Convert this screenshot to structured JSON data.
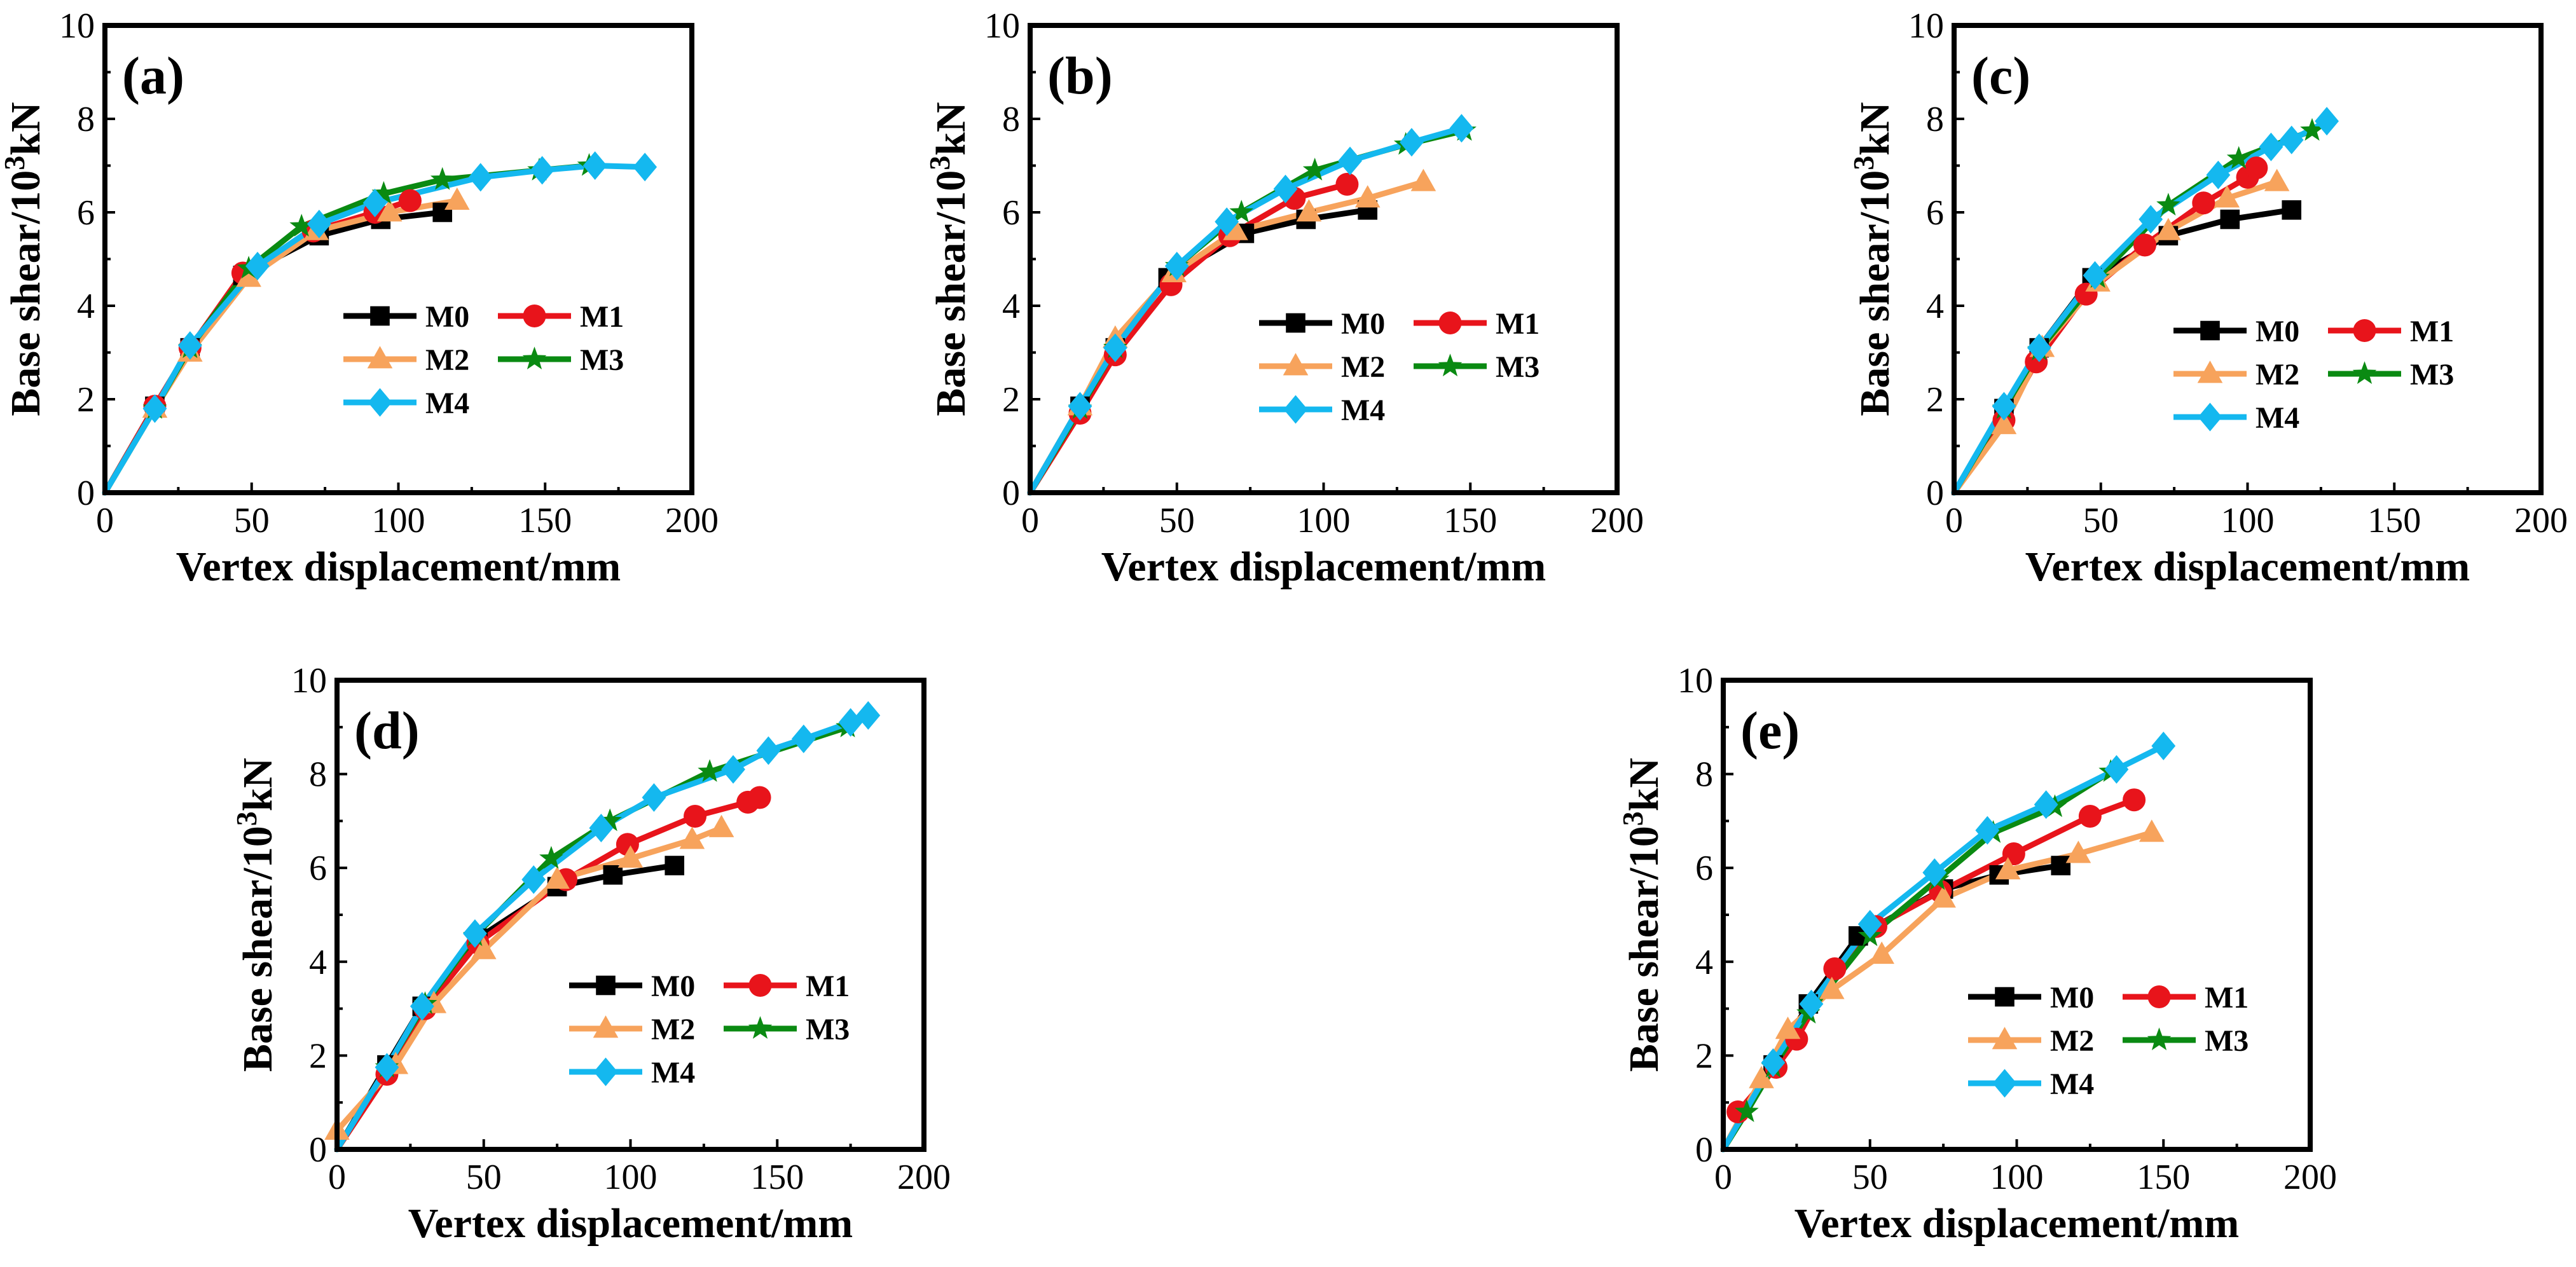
{
  "chart_data": [
    {
      "type": "line",
      "panel_label": "(a)",
      "xlabel": "Vertex displacement/mm",
      "ylabel_main": "Base shear/10",
      "ylabel_sup": "3",
      "ylabel_unit": "kN",
      "xlim": [
        0,
        200
      ],
      "ylim": [
        0,
        10
      ],
      "xticks": [
        "0",
        "50",
        "100",
        "150",
        "200"
      ],
      "yticks": [
        "0",
        "2",
        "4",
        "6",
        "8",
        "10"
      ],
      "series": [
        {
          "name": "M0",
          "color": "#000000",
          "marker": "square",
          "x": [
            0,
            17,
            29,
            47,
            73,
            94,
            115
          ],
          "y": [
            0,
            1.85,
            3.1,
            4.65,
            5.5,
            5.85,
            6.0
          ]
        },
        {
          "name": "M1",
          "color": "#e8141b",
          "marker": "circle",
          "x": [
            0,
            17,
            29,
            47,
            71,
            92,
            104
          ],
          "y": [
            0,
            1.85,
            3.1,
            4.7,
            5.6,
            6.0,
            6.25
          ]
        },
        {
          "name": "M2",
          "color": "#f7a35c",
          "marker": "triangle",
          "x": [
            0,
            17,
            29,
            49,
            72,
            97,
            120
          ],
          "y": [
            0,
            1.8,
            3.0,
            4.6,
            5.6,
            6.0,
            6.25
          ]
        },
        {
          "name": "M3",
          "color": "#0a8a12",
          "marker": "star",
          "x": [
            0,
            17,
            29,
            49,
            67,
            95,
            115,
            148,
            165
          ],
          "y": [
            0,
            1.8,
            3.1,
            4.8,
            5.7,
            6.4,
            6.7,
            6.9,
            7.0
          ]
        },
        {
          "name": "M4",
          "color": "#14b8ef",
          "marker": "diamond",
          "x": [
            0,
            17,
            29,
            52,
            73,
            92,
            128,
            149,
            167,
            184
          ],
          "y": [
            0,
            1.8,
            3.15,
            4.85,
            5.75,
            6.2,
            6.75,
            6.9,
            7.0,
            6.97
          ]
        }
      ],
      "legend_position": "lower-right"
    },
    {
      "type": "line",
      "panel_label": "(b)",
      "xlabel": "Vertex displacement/mm",
      "ylabel_main": "Base shear/10",
      "ylabel_sup": "3",
      "ylabel_unit": "kN",
      "xlim": [
        0,
        200
      ],
      "ylim": [
        0,
        10
      ],
      "xticks": [
        "0",
        "50",
        "100",
        "150",
        "200"
      ],
      "yticks": [
        "0",
        "2",
        "4",
        "6",
        "8",
        "10"
      ],
      "series": [
        {
          "name": "M0",
          "color": "#000000",
          "marker": "square",
          "x": [
            0,
            17,
            29,
            47,
            73,
            94,
            115
          ],
          "y": [
            0,
            1.85,
            3.1,
            4.6,
            5.55,
            5.85,
            6.05
          ]
        },
        {
          "name": "M1",
          "color": "#e8141b",
          "marker": "circle",
          "x": [
            0,
            17,
            29,
            48,
            68,
            90,
            108
          ],
          "y": [
            0,
            1.7,
            2.95,
            4.45,
            5.5,
            6.3,
            6.6
          ]
        },
        {
          "name": "M2",
          "color": "#f7a35c",
          "marker": "triangle",
          "x": [
            0,
            17,
            29,
            49,
            70,
            95,
            115,
            134
          ],
          "y": [
            0,
            1.85,
            3.3,
            4.7,
            5.6,
            6.0,
            6.3,
            6.65
          ]
        },
        {
          "name": "M3",
          "color": "#0a8a12",
          "marker": "star",
          "x": [
            0,
            17,
            29,
            50,
            72,
            97,
            128,
            148
          ],
          "y": [
            0,
            1.8,
            3.1,
            4.85,
            6.0,
            6.9,
            7.45,
            7.75
          ]
        },
        {
          "name": "M4",
          "color": "#14b8ef",
          "marker": "diamond",
          "x": [
            0,
            17,
            29,
            50,
            67,
            87,
            109,
            130,
            147
          ],
          "y": [
            0,
            1.85,
            3.1,
            4.85,
            5.8,
            6.5,
            7.1,
            7.5,
            7.8
          ]
        }
      ],
      "legend_position": "lower-right"
    },
    {
      "type": "line",
      "panel_label": "(c)",
      "xlabel": "Vertex displacement/mm",
      "ylabel_main": "Base shear/10",
      "ylabel_sup": "3",
      "ylabel_unit": "kN",
      "xlim": [
        0,
        200
      ],
      "ylim": [
        0,
        10
      ],
      "xticks": [
        "0",
        "50",
        "100",
        "150",
        "200"
      ],
      "yticks": [
        "0",
        "2",
        "4",
        "6",
        "8",
        "10"
      ],
      "series": [
        {
          "name": "M0",
          "color": "#000000",
          "marker": "square",
          "x": [
            0,
            17,
            29,
            47,
            73,
            94,
            115
          ],
          "y": [
            0,
            1.8,
            3.1,
            4.6,
            5.5,
            5.85,
            6.05
          ]
        },
        {
          "name": "M1",
          "color": "#e8141b",
          "marker": "circle",
          "x": [
            0,
            17,
            28,
            45,
            65,
            85,
            100,
            103
          ],
          "y": [
            0,
            1.55,
            2.8,
            4.25,
            5.3,
            6.2,
            6.75,
            6.95
          ]
        },
        {
          "name": "M2",
          "color": "#f7a35c",
          "marker": "triangle",
          "x": [
            0,
            17,
            30,
            49,
            73,
            93,
            110
          ],
          "y": [
            0,
            1.45,
            3.1,
            4.5,
            5.6,
            6.3,
            6.65
          ]
        },
        {
          "name": "M3",
          "color": "#0a8a12",
          "marker": "star",
          "x": [
            0,
            17,
            29,
            49,
            73,
            97,
            122
          ],
          "y": [
            0,
            1.8,
            3.05,
            4.6,
            6.15,
            7.15,
            7.75
          ]
        },
        {
          "name": "M4",
          "color": "#14b8ef",
          "marker": "diamond",
          "x": [
            0,
            17,
            29,
            48,
            67,
            90,
            108,
            115,
            127
          ],
          "y": [
            0,
            1.85,
            3.1,
            4.65,
            5.85,
            6.8,
            7.4,
            7.55,
            7.95
          ]
        }
      ],
      "legend_position": "lower-right"
    },
    {
      "type": "line",
      "panel_label": "(d)",
      "xlabel": "Vertex displacement/mm",
      "ylabel_main": "Base shear/10",
      "ylabel_sup": "3",
      "ylabel_unit": "kN",
      "xlim": [
        0,
        200
      ],
      "ylim": [
        0,
        10
      ],
      "xticks": [
        "0",
        "50",
        "100",
        "150",
        "200"
      ],
      "yticks": [
        "0",
        "2",
        "4",
        "6",
        "8",
        "10"
      ],
      "series": [
        {
          "name": "M0",
          "color": "#000000",
          "marker": "square",
          "x": [
            0,
            17,
            29,
            48,
            75,
            94,
            115
          ],
          "y": [
            0,
            1.8,
            3.05,
            4.5,
            5.6,
            5.85,
            6.05
          ]
        },
        {
          "name": "M1",
          "color": "#e8141b",
          "marker": "circle",
          "x": [
            0,
            17,
            30,
            48,
            78,
            99,
            122,
            140,
            144
          ],
          "y": [
            0,
            1.6,
            3.0,
            4.4,
            5.75,
            6.5,
            7.1,
            7.4,
            7.5
          ]
        },
        {
          "name": "M2",
          "color": "#f7a35c",
          "marker": "triangle",
          "x": [
            0,
            20,
            33,
            50,
            75,
            100,
            121,
            131
          ],
          "y": [
            0.4,
            1.8,
            3.1,
            4.25,
            5.75,
            6.2,
            6.6,
            6.85
          ]
        },
        {
          "name": "M3",
          "color": "#0a8a12",
          "marker": "star",
          "x": [
            0,
            17,
            30,
            47,
            73,
            93,
            127,
            174
          ],
          "y": [
            0,
            1.75,
            3.1,
            4.55,
            6.2,
            7.0,
            8.05,
            9.0
          ]
        },
        {
          "name": "M4",
          "color": "#14b8ef",
          "marker": "diamond",
          "x": [
            0,
            17,
            29,
            47,
            67,
            90,
            108,
            135,
            147,
            159,
            175,
            181
          ],
          "y": [
            0,
            1.75,
            3.05,
            4.6,
            5.75,
            6.85,
            7.5,
            8.1,
            8.5,
            8.75,
            9.1,
            9.25
          ]
        }
      ],
      "legend_position": "lower-right"
    },
    {
      "type": "line",
      "panel_label": "(e)",
      "xlabel": "Vertex displacement/mm",
      "ylabel_main": "Base shear/10",
      "ylabel_sup": "3",
      "ylabel_unit": "kN",
      "xlim": [
        0,
        200
      ],
      "ylim": [
        0,
        10
      ],
      "xticks": [
        "0",
        "50",
        "100",
        "150",
        "200"
      ],
      "yticks": [
        "0",
        "2",
        "4",
        "6",
        "8",
        "10"
      ],
      "series": [
        {
          "name": "M0",
          "color": "#000000",
          "marker": "square",
          "x": [
            0,
            17,
            29,
            46,
            75,
            94,
            115
          ],
          "y": [
            0,
            1.8,
            3.1,
            4.55,
            5.55,
            5.85,
            6.05
          ]
        },
        {
          "name": "M1",
          "color": "#e8141b",
          "marker": "circle",
          "x": [
            5,
            18,
            25,
            38,
            52,
            74,
            99,
            125,
            140
          ],
          "y": [
            0.8,
            1.75,
            2.35,
            3.85,
            4.75,
            5.5,
            6.3,
            7.1,
            7.45
          ]
        },
        {
          "name": "M2",
          "color": "#f7a35c",
          "marker": "triangle",
          "x": [
            0,
            13,
            22,
            37,
            54,
            75,
            97,
            121,
            146
          ],
          "y": [
            0,
            1.5,
            2.55,
            3.4,
            4.15,
            5.35,
            5.95,
            6.3,
            6.75
          ]
        },
        {
          "name": "M3",
          "color": "#0a8a12",
          "marker": "star",
          "x": [
            0,
            8,
            17,
            29,
            50,
            73,
            92,
            113,
            132
          ],
          "y": [
            0,
            0.8,
            1.75,
            2.9,
            4.55,
            5.75,
            6.75,
            7.3,
            8.05
          ]
        },
        {
          "name": "M4",
          "color": "#14b8ef",
          "marker": "diamond",
          "x": [
            0,
            17,
            30,
            50,
            72,
            90,
            110,
            134,
            150
          ],
          "y": [
            0,
            1.85,
            3.1,
            4.8,
            5.9,
            6.8,
            7.35,
            8.1,
            8.6
          ]
        }
      ],
      "legend_position": "lower-right"
    }
  ]
}
